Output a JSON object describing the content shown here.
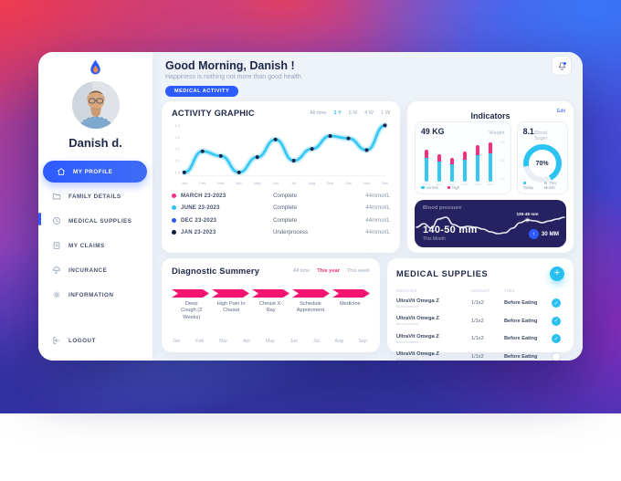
{
  "colors": {
    "blue": "#2e5bff",
    "cyan": "#35c8f5",
    "pink": "#f5317f",
    "magenta": "#f5146f",
    "navy": "#262262",
    "text": "#1c2749"
  },
  "sidebar": {
    "name": "Danish d.",
    "items": [
      {
        "label": "MY PROFILE",
        "icon": "home-icon",
        "active": true
      },
      {
        "label": "FAMILY DETAILS",
        "icon": "folder-icon",
        "active": false
      },
      {
        "label": "MEDICAL SUPPLIES",
        "icon": "clock-icon",
        "active": false
      },
      {
        "label": "MY CLAIMS",
        "icon": "claims-icon",
        "active": false
      },
      {
        "label": "INCURANCE",
        "icon": "umbrella-icon",
        "active": false
      },
      {
        "label": "INFORMATION",
        "icon": "gear-icon",
        "active": false
      }
    ],
    "logout_label": "LOGOUT"
  },
  "header": {
    "greeting": "Good Morning, Danish !",
    "subtitle": "Happiness is nothing not more than good health.",
    "badge": "MEDICAL ACTIVITY"
  },
  "activity": {
    "title": "ACTIVITY GRAPHIC",
    "filters": [
      "All time",
      "1 Y",
      "6 M",
      "4 W",
      "1 W"
    ],
    "active_filter": "1 Y",
    "rows": [
      {
        "color": "#f5317f",
        "date": "MARCH 23-2023",
        "status": "Complete",
        "value": "44mmol/L"
      },
      {
        "color": "#29c5f6",
        "date": "JUNE 23-2023",
        "status": "Complete",
        "value": "44mmol/L"
      },
      {
        "color": "#2f5bea",
        "date": "DEC 23-2023",
        "status": "Complete",
        "value": "44mmol/L"
      },
      {
        "color": "#141a3c",
        "date": "JAN 23-2023",
        "status": "Underprocess",
        "value": "44mmol/L"
      }
    ]
  },
  "indicators": {
    "title": "Indicators",
    "edit_label": "Edit",
    "weight": {
      "value": "49 KG",
      "label": "Weight",
      "legend": [
        "normal",
        "high"
      ]
    },
    "blood_sugar": {
      "value": "8.1",
      "label": "Blood Suger",
      "percent_label": "70%",
      "legend": [
        "Today",
        "This Month"
      ]
    },
    "blood_pressure": {
      "label": "Blood pressure",
      "tooltip": "130-48 mm",
      "reading": "140-50 mm",
      "period": "This Month",
      "delta": "30 MM",
      "up_glyph": "↑"
    }
  },
  "diagnostic": {
    "title": "Diagnostic Summery",
    "filters": [
      "All time",
      "This year",
      "This week"
    ],
    "active_filter": "This year",
    "steps": [
      "Deep Cough (2 Weeks)",
      "High Pain In Cheast",
      "Cheast X-Ray",
      "Schedule Appoinment",
      "Medicine"
    ],
    "months": [
      "Jan",
      "Feb",
      "Mar",
      "Apr",
      "May",
      "Jun",
      "Jul",
      "Aug",
      "Sep"
    ]
  },
  "supplies": {
    "title": "MEDICAL SUPPLIES",
    "add_label": "+",
    "columns": [
      "MEDICEN",
      "AMOUNT",
      "TIME"
    ],
    "rows": [
      {
        "name": "UltraVit Omega Z",
        "sub": "Blood pressure",
        "amount": "1/1x2",
        "time": "Before Eating",
        "checked": true
      },
      {
        "name": "UltraVit Omega Z",
        "sub": "Blood pressure",
        "amount": "1/1x2",
        "time": "Before Eating",
        "checked": true
      },
      {
        "name": "UltraVit Omega Z",
        "sub": "Blood pressure",
        "amount": "1/1x2",
        "time": "Before Eating",
        "checked": true
      },
      {
        "name": "UltraVit Omega Z",
        "sub": "Blood pressure",
        "amount": "1/1x2",
        "time": "Before Eating",
        "checked": false
      }
    ]
  },
  "chart_data": [
    {
      "type": "line",
      "title": "ACTIVITY GRAPHIC",
      "x": [
        "Jan",
        "Feb",
        "Mar",
        "Apr",
        "May",
        "Jun",
        "Jul",
        "Aug",
        "Sep",
        "Oct",
        "Nov",
        "Dec"
      ],
      "values": [
        1.0,
        2.8,
        2.4,
        1.0,
        2.3,
        3.8,
        2.0,
        3.0,
        4.1,
        3.9,
        2.9,
        5.0
      ],
      "ylim": [
        1,
        5
      ],
      "yticks": [
        "5.0",
        "4.0",
        "3.0",
        "2.0",
        "1.0"
      ],
      "line_color": "#35c8f5",
      "dot_color": "#202647",
      "grid": false
    },
    {
      "type": "bar",
      "title": "Weight",
      "categories": [
        "23/05",
        "23/05",
        "23/05",
        "23/05",
        "23/05",
        "23/05"
      ],
      "series": [
        {
          "name": "normal",
          "values": [
            7.3,
            6.8,
            6.5,
            7.1,
            7.6,
            7.8
          ]
        },
        {
          "name": "high",
          "values": [
            8.3,
            7.7,
            7.3,
            8.1,
            8.9,
            9.2
          ]
        }
      ],
      "yticks": [
        "9.0",
        "8.3",
        "4.7"
      ],
      "ymin": 4.4,
      "legend": [
        "normal",
        "high"
      ],
      "legend_position": "bottom"
    },
    {
      "type": "pie",
      "title": "Blood Suger",
      "value": 70,
      "center_label": "70%",
      "legend": [
        "Today",
        "This Month"
      ]
    },
    {
      "type": "line",
      "title": "Blood pressure",
      "points": [
        15,
        11,
        16,
        6,
        4,
        12,
        15,
        14,
        15,
        17,
        20,
        22,
        21,
        16,
        10,
        7,
        8,
        10,
        8,
        6,
        4
      ],
      "marker_index": 15,
      "marker_label": "130-48 mm",
      "reading": "140-50 mm",
      "period": "This Month",
      "delta": "30 MM"
    },
    {
      "type": "table",
      "title": "Diagnostic Summery",
      "steps": [
        "Deep Cough (2 Weeks)",
        "High Pain In Cheast",
        "Cheast X-Ray",
        "Schedule Appoinment",
        "Medicine"
      ],
      "months": [
        "Jan",
        "Feb",
        "Mar",
        "Apr",
        "May",
        "Jun",
        "Jul",
        "Aug",
        "Sep"
      ]
    }
  ]
}
